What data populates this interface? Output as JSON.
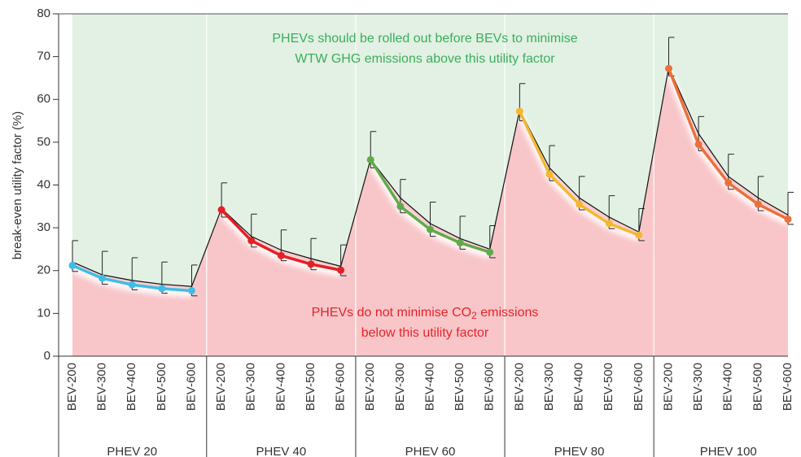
{
  "chart_data": {
    "type": "line",
    "y_label": "break-even utility factor (%)",
    "ylim": [
      0,
      80
    ],
    "yticks": [
      0,
      10,
      20,
      30,
      40,
      50,
      60,
      70,
      80
    ],
    "annotation_top": [
      "PHEVs should be rolled out before BEVs to minimise",
      "WTW GHG emissions above this utility factor"
    ],
    "annotation_bottom": {
      "before": "PHEVs do not minimise CO",
      "subscript": "2",
      "after": " emissions",
      "line2": "below this utility factor"
    },
    "region_above_color": "#e2f1e3",
    "region_below_color": "#f8c6c9",
    "reference_color": "#111111",
    "groups": [
      {
        "label": "PHEV 20",
        "color": "#3fbde6",
        "categories": [
          "BEV-200",
          "BEV-300",
          "BEV-400",
          "BEV-500",
          "BEV-600"
        ],
        "values": [
          21.2,
          18.2,
          16.7,
          15.8,
          15.3
        ],
        "error_upper": [
          27,
          24.5,
          23,
          22,
          21.3
        ],
        "error_lower": [
          19.8,
          16.8,
          15.5,
          14.7,
          14.1
        ],
        "reference": [
          22,
          19,
          17.7,
          16.8,
          16.3
        ]
      },
      {
        "label": "PHEV 40",
        "color": "#e42026",
        "categories": [
          "BEV-200",
          "BEV-300",
          "BEV-400",
          "BEV-500",
          "BEV-600"
        ],
        "values": [
          34.2,
          27,
          23.5,
          21.5,
          20.1
        ],
        "error_upper": [
          40.5,
          33.2,
          29.5,
          27.5,
          26
        ],
        "error_lower": [
          32.5,
          25.5,
          22.3,
          20.2,
          18.8
        ],
        "reference": [
          34.5,
          28,
          24.8,
          22.8,
          21
        ]
      },
      {
        "label": "PHEV 60",
        "color": "#5fab4a",
        "categories": [
          "BEV-200",
          "BEV-300",
          "BEV-400",
          "BEV-500",
          "BEV-600"
        ],
        "values": [
          45.9,
          35,
          29.6,
          26.5,
          24.3
        ],
        "error_upper": [
          52.5,
          41.3,
          36,
          32.7,
          30.5
        ],
        "error_lower": [
          44,
          33.5,
          28,
          25,
          23
        ],
        "reference": [
          46,
          37,
          31,
          27.5,
          25
        ]
      },
      {
        "label": "PHEV 80",
        "color": "#f5b731",
        "categories": [
          "BEV-200",
          "BEV-300",
          "BEV-400",
          "BEV-500",
          "BEV-600"
        ],
        "values": [
          57.2,
          42.5,
          35.5,
          31,
          28.3
        ],
        "error_upper": [
          63.7,
          49.2,
          42,
          37.5,
          34.5
        ],
        "error_lower": [
          55,
          41,
          34.2,
          29.8,
          27
        ],
        "reference": [
          57.5,
          44,
          37,
          32.5,
          29
        ]
      },
      {
        "label": "PHEV 100",
        "color": "#ec6f3a",
        "categories": [
          "BEV-200",
          "BEV-300",
          "BEV-400",
          "BEV-500",
          "BEV-600"
        ],
        "values": [
          67.2,
          49.5,
          40.5,
          35.5,
          32
        ],
        "error_upper": [
          74.5,
          56,
          47.2,
          42,
          38.3
        ],
        "error_lower": [
          65.5,
          48,
          39,
          34,
          30.8
        ],
        "reference": [
          67.5,
          52,
          42,
          37,
          33
        ]
      }
    ]
  }
}
